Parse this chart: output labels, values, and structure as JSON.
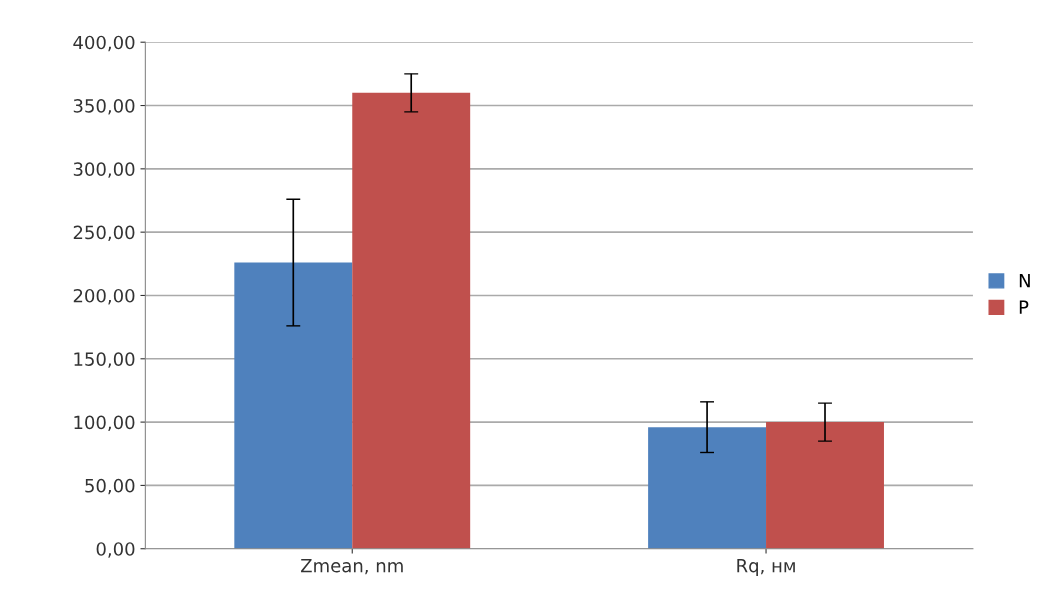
{
  "chart_data": {
    "type": "bar",
    "categories": [
      "Zmean, nm",
      "Rq, нм"
    ],
    "series": [
      {
        "name": "N",
        "color": "#4f81bd",
        "values": [
          226,
          96
        ],
        "errors": [
          50,
          20
        ]
      },
      {
        "name": "P",
        "color": "#c0504d",
        "values": [
          360,
          100
        ],
        "errors": [
          15,
          15
        ]
      }
    ],
    "ylim": [
      0,
      400
    ],
    "yticks": [
      {
        "value": 0,
        "label": "0,00"
      },
      {
        "value": 50,
        "label": "50,00"
      },
      {
        "value": 100,
        "label": "100,00"
      },
      {
        "value": 150,
        "label": "150,00"
      },
      {
        "value": 200,
        "label": "200,00"
      },
      {
        "value": 250,
        "label": "250,00"
      },
      {
        "value": 300,
        "label": "300,00"
      },
      {
        "value": 350,
        "label": "350,00"
      },
      {
        "value": 400,
        "label": "400,00"
      }
    ],
    "grid": "y",
    "legend": "right"
  }
}
